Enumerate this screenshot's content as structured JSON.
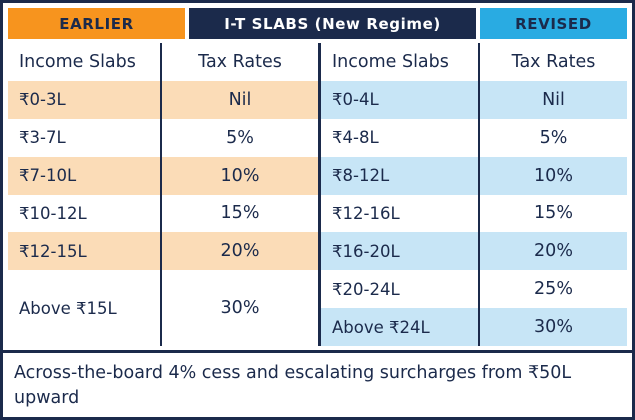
{
  "header": {
    "earlier_label": "EARLIER",
    "title": "I-T SLABS (New Regime)",
    "revised_label": "REVISED"
  },
  "earlier_table": {
    "col_slabs": "Income Slabs",
    "col_rates": "Tax Rates",
    "rows": [
      {
        "slab": "₹0-3L",
        "rate": "Nil"
      },
      {
        "slab": "₹3-7L",
        "rate": "5%"
      },
      {
        "slab": "₹7-10L",
        "rate": "10%"
      },
      {
        "slab": "₹10-12L",
        "rate": "15%"
      },
      {
        "slab": "₹12-15L",
        "rate": "20%"
      },
      {
        "slab": "Above ₹15L",
        "rate": "30%"
      }
    ]
  },
  "revised_table": {
    "col_slabs": "Income Slabs",
    "col_rates": "Tax Rates",
    "rows": [
      {
        "slab": "₹0-4L",
        "rate": "Nil"
      },
      {
        "slab": "₹4-8L",
        "rate": "5%"
      },
      {
        "slab": "₹8-12L",
        "rate": "10%"
      },
      {
        "slab": "₹12-16L",
        "rate": "15%"
      },
      {
        "slab": "₹16-20L",
        "rate": "20%"
      },
      {
        "slab": "₹20-24L",
        "rate": "25%"
      },
      {
        "slab": "Above ₹24L",
        "rate": "30%"
      }
    ]
  },
  "footnote": "Across-the-board 4% cess and escalating surcharges from ₹50L upward",
  "colors": {
    "navy": "#1b2a4b",
    "orange": "#f7941e",
    "blue": "#29abe2",
    "peach_row": "#fbdcb7",
    "lightblue_row": "#c7e5f6"
  },
  "chart_data": [
    {
      "type": "table",
      "title": "EARLIER — I-T Slabs (New Regime)",
      "columns": [
        "Income Slabs",
        "Tax Rates"
      ],
      "rows": [
        [
          "₹0-3L",
          "Nil"
        ],
        [
          "₹3-7L",
          "5%"
        ],
        [
          "₹7-10L",
          "10%"
        ],
        [
          "₹10-12L",
          "15%"
        ],
        [
          "₹12-15L",
          "20%"
        ],
        [
          "Above ₹15L",
          "30%"
        ]
      ]
    },
    {
      "type": "table",
      "title": "REVISED — I-T Slabs (New Regime)",
      "columns": [
        "Income Slabs",
        "Tax Rates"
      ],
      "rows": [
        [
          "₹0-4L",
          "Nil"
        ],
        [
          "₹4-8L",
          "5%"
        ],
        [
          "₹8-12L",
          "10%"
        ],
        [
          "₹12-16L",
          "15%"
        ],
        [
          "₹16-20L",
          "20%"
        ],
        [
          "₹20-24L",
          "25%"
        ],
        [
          "Above ₹24L",
          "30%"
        ]
      ]
    }
  ]
}
